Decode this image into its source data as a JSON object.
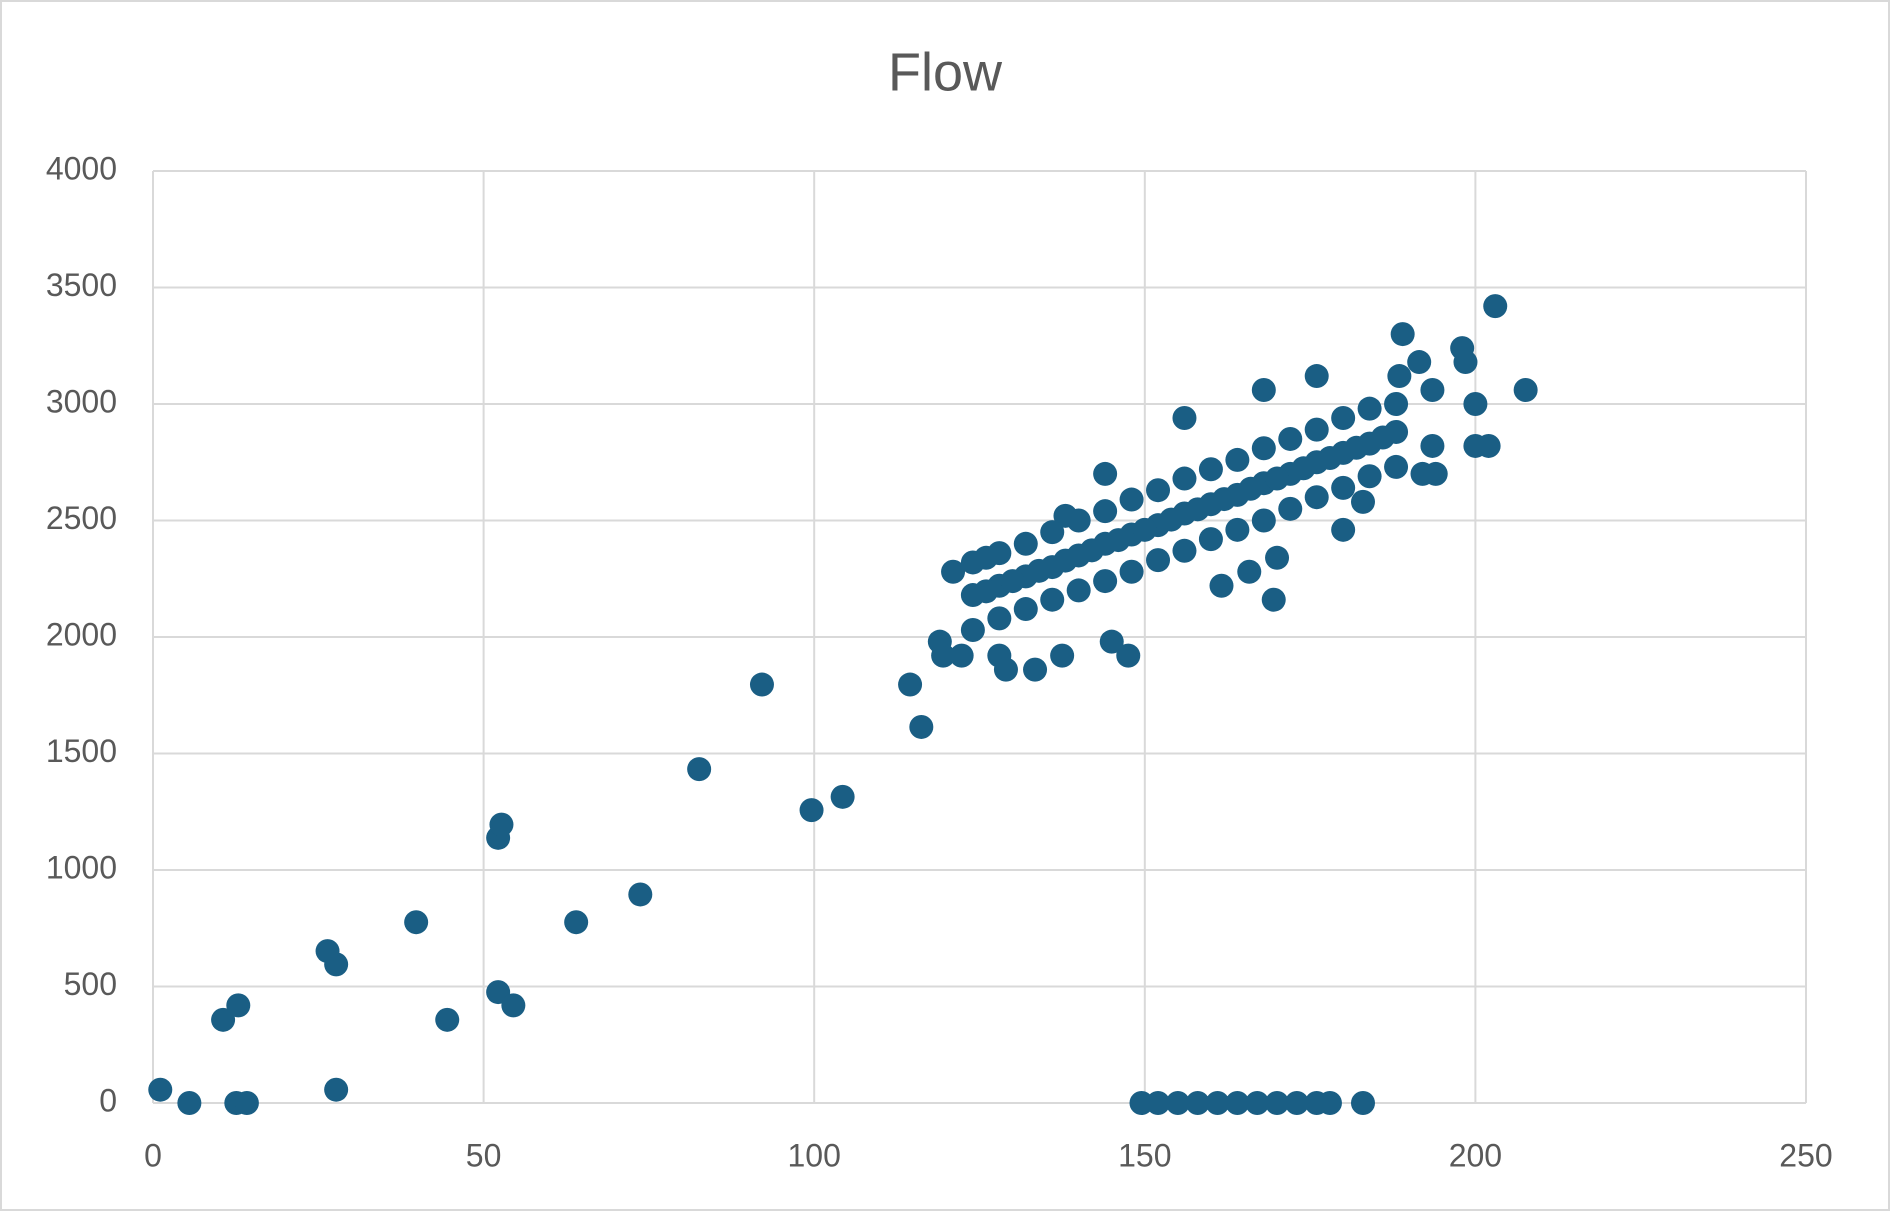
{
  "chart_data": {
    "type": "scatter",
    "title": "Flow",
    "color": "#1a5e84",
    "grid": true,
    "xlim": [
      0,
      250
    ],
    "xticks": [
      0,
      50,
      100,
      150,
      200,
      250
    ],
    "ylim": [
      0,
      4000
    ],
    "yticks": [
      0,
      500,
      1000,
      1500,
      2000,
      2500,
      3000,
      3500,
      4000
    ],
    "x": [
      1.1,
      5.5,
      12.6,
      14.2,
      10.6,
      12.9,
      26.4,
      27.7,
      27.7,
      39.8,
      44.5,
      52.2,
      52.2,
      52.7,
      54.5,
      64,
      73.7,
      82.6,
      92.1,
      99.6,
      104.3,
      114.5,
      116.2,
      119,
      119.5,
      121,
      122.3,
      126,
      128,
      129,
      133.4,
      137.5,
      138,
      144,
      145,
      147.5,
      156,
      161.6,
      165.8,
      168,
      169.5,
      170,
      176,
      180,
      183,
      189,
      188.5,
      191.5,
      193.5,
      192,
      193.5,
      198,
      198.5,
      200,
      200,
      202,
      203,
      207.6,
      194,
      124,
      124,
      124,
      128,
      128,
      128,
      132,
      132,
      132,
      136,
      136,
      136,
      140,
      140,
      140,
      144,
      144,
      144,
      148,
      148,
      148,
      152,
      152,
      152,
      156,
      156,
      156,
      160,
      160,
      160,
      164,
      164,
      164,
      168,
      168,
      168,
      172,
      172,
      172,
      176,
      176,
      176,
      180,
      180,
      180,
      184,
      184,
      184,
      188,
      188,
      188,
      126,
      130,
      134,
      138,
      142,
      146,
      150,
      154,
      158,
      162,
      166,
      170,
      174,
      178,
      182,
      186,
      149.5,
      152,
      155,
      158,
      161,
      164,
      167,
      170,
      173,
      176,
      178,
      183
    ],
    "values": [
      57,
      0,
      0,
      0,
      357,
      419,
      652,
      595,
      57,
      776,
      357,
      476,
      1138,
      1195,
      419,
      776,
      895,
      1433,
      1796,
      1257,
      1314,
      1796,
      1614,
      1980,
      1920,
      2280,
      1920,
      2340,
      1920,
      1860,
      1860,
      1920,
      2520,
      2700,
      1980,
      1920,
      2940,
      2220,
      2280,
      3060,
      2160,
      2340,
      3120,
      2460,
      2580,
      3300,
      3120,
      3180,
      3060,
      2700,
      2820,
      3240,
      3180,
      3000,
      2820,
      2820,
      3420,
      3060,
      2700,
      2030,
      2180,
      2320,
      2080,
      2220,
      2360,
      2120,
      2260,
      2400,
      2160,
      2300,
      2450,
      2200,
      2350,
      2500,
      2240,
      2400,
      2540,
      2280,
      2440,
      2590,
      2330,
      2480,
      2630,
      2370,
      2530,
      2680,
      2420,
      2570,
      2720,
      2460,
      2610,
      2760,
      2500,
      2660,
      2810,
      2550,
      2700,
      2850,
      2600,
      2750,
      2890,
      2640,
      2790,
      2940,
      2690,
      2830,
      2980,
      2730,
      2880,
      3000,
      2196,
      2240,
      2284,
      2328,
      2372,
      2416,
      2460,
      2504,
      2548,
      2592,
      2636,
      2680,
      2724,
      2768,
      2812,
      2856,
      0,
      0,
      0,
      0,
      0,
      0,
      0,
      0,
      0,
      0,
      0,
      0
    ]
  }
}
